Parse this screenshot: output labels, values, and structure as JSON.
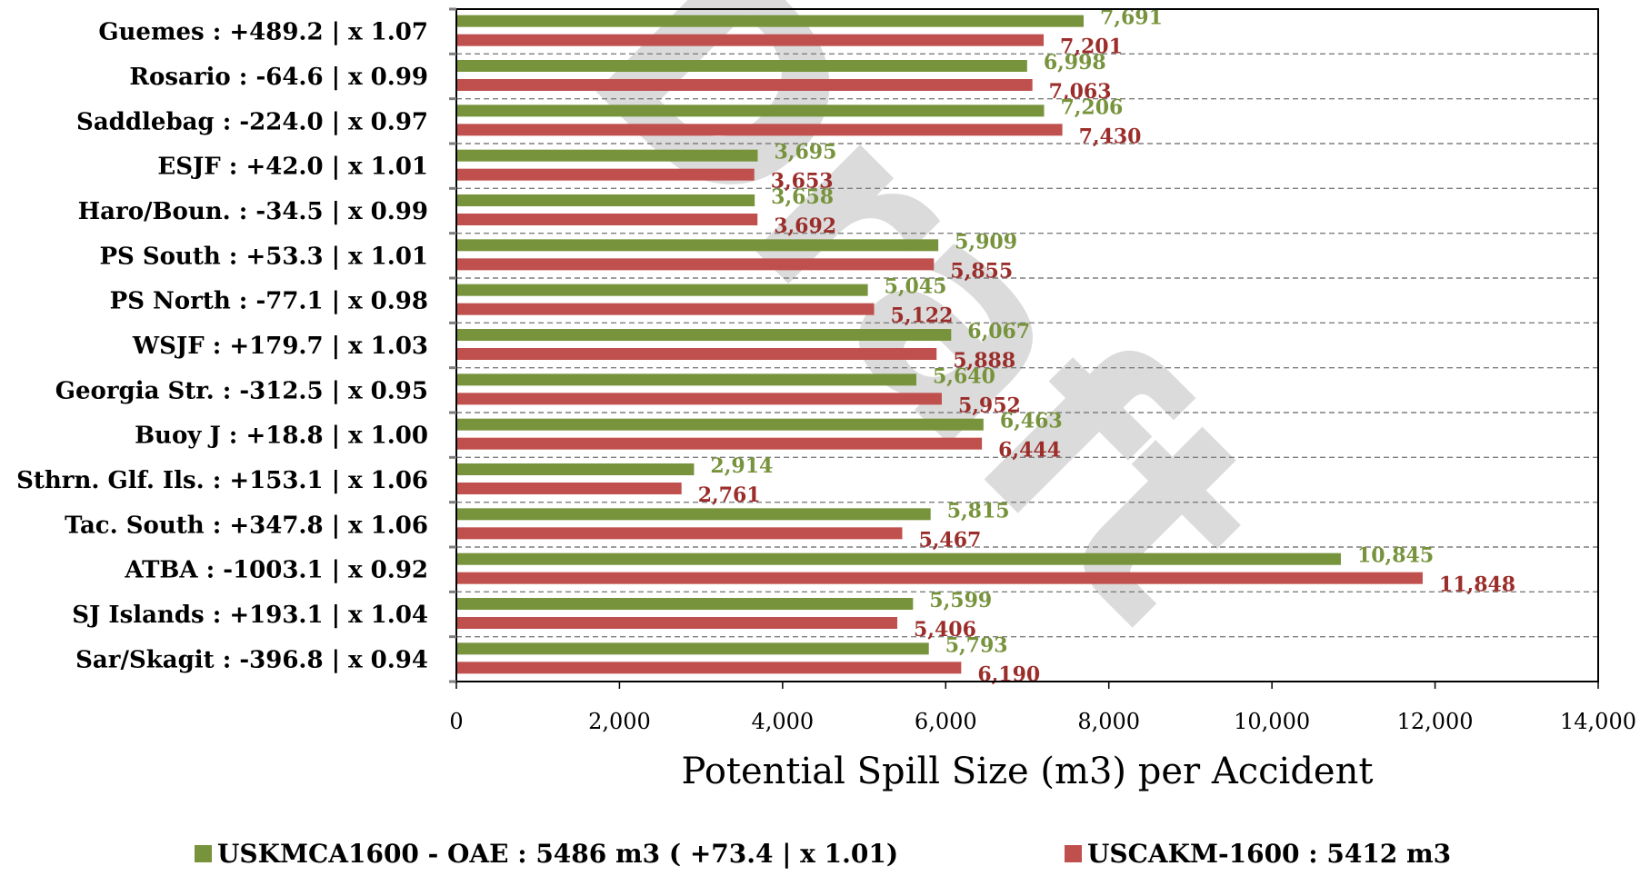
{
  "chart_data": {
    "type": "bar",
    "orientation": "horizontal",
    "categories": [
      "Guemes : +489.2 |  x 1.07",
      "Rosario : -64.6 |  x 0.99",
      "Saddlebag : -224.0 |  x 0.97",
      "ESJF : +42.0 |  x 1.01",
      "Haro/Boun. : -34.5 |  x 0.99",
      "PS South : +53.3 |  x 1.01",
      "PS North : -77.1 |  x 0.98",
      "WSJF : +179.7 |  x 1.03",
      "Georgia Str. : -312.5 |  x 0.95",
      "Buoy J : +18.8 |  x 1.00",
      "Sthrn. Glf. Ils. : +153.1 |  x 1.06",
      "Tac. South : +347.8 |  x 1.06",
      "ATBA : -1003.1 |  x 0.92",
      "SJ Islands : +193.1 |  x 1.04",
      "Sar/Skagit : -396.8 |  x 0.94"
    ],
    "series": [
      {
        "name": "USKMCA1600 - OAE : 5486 m3 ( +73.4 |  x 1.01)",
        "color": "#77933c",
        "values": [
          7691,
          6998,
          7206,
          3695,
          3658,
          5909,
          5045,
          6067,
          5640,
          6463,
          2914,
          5815,
          10845,
          5599,
          5793
        ],
        "labels": [
          "7,691",
          "6,998",
          "7,206",
          "3,695",
          "3,658",
          "5,909",
          "5,045",
          "6,067",
          "5,640",
          "6,463",
          "2,914",
          "5,815",
          "10,845",
          "5,599",
          "5,793"
        ]
      },
      {
        "name": "USCAKM-1600 : 5412 m3",
        "color": "#c0504d",
        "values": [
          7201,
          7063,
          7430,
          3653,
          3692,
          5855,
          5122,
          5888,
          5952,
          6444,
          2761,
          5467,
          11848,
          5406,
          6190
        ],
        "labels": [
          "7,201",
          "7,063",
          "7,430",
          "3,653",
          "3,692",
          "5,855",
          "5,122",
          "5,888",
          "5,952",
          "6,444",
          "2,761",
          "5,467",
          "11,848",
          "5,406",
          "6,190"
        ]
      }
    ],
    "label_colors": [
      "#77933c",
      "#9b2d2a"
    ],
    "xlabel": "Potential Spill Size (m3) per Accident",
    "xlim": [
      0,
      14000
    ],
    "xticks": [
      0,
      2000,
      4000,
      6000,
      8000,
      10000,
      12000,
      14000
    ],
    "xtick_labels": [
      "0",
      "2,000",
      "4,000",
      "6,000",
      "8,000",
      "10,000",
      "12,000",
      "14,000"
    ],
    "grid": "horizontal dashed",
    "legend": "bottom",
    "watermark": "Draft"
  }
}
